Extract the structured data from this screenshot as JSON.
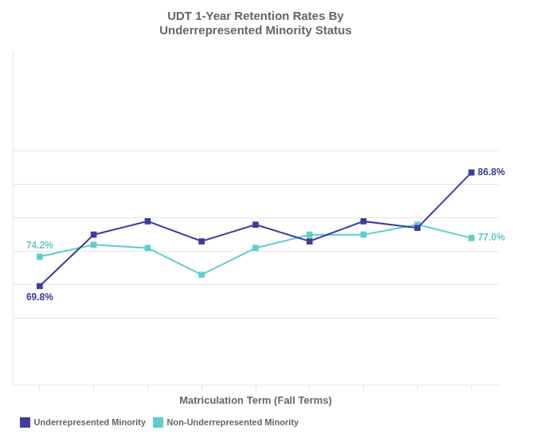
{
  "chart_data": {
    "type": "line",
    "title": [
      "UDT 1-Year Retention Rates By",
      "Underrepresented Minority Status"
    ],
    "x_label": "Matriculation Term (Fall Terms)",
    "x": [
      1,
      2,
      3,
      4,
      5,
      6,
      7,
      8,
      9
    ],
    "series": [
      {
        "name": "Underrepresented Minority",
        "color": "#3d3d9e",
        "values": [
          69.8,
          77.5,
          79.5,
          76.5,
          79.0,
          76.5,
          79.5,
          78.5,
          86.8
        ]
      },
      {
        "name": "Non-Underrepresented Minority",
        "color": "#5ecec8",
        "values": [
          74.2,
          76.0,
          75.5,
          71.5,
          75.5,
          77.5,
          77.5,
          79.0,
          77.0
        ]
      }
    ],
    "xlim": [
      0.5,
      9.5
    ],
    "xticks": [
      1,
      2,
      3,
      4,
      5,
      6,
      7,
      8,
      9
    ],
    "ylim": [
      55,
      105
    ],
    "yticks": [
      65,
      70,
      75,
      80,
      85,
      90
    ],
    "grid": true,
    "tick_labels": false,
    "legend": "lower left",
    "marker": "square",
    "annotations": [
      {
        "text": "69.8%",
        "x": 1,
        "y": 69.8,
        "color": "#3d3d9e"
      },
      {
        "text": "86.8%",
        "x": 9,
        "y": 86.8,
        "color": "#3d3d9e"
      },
      {
        "text": "74.2%",
        "x": 1,
        "y": 74.2,
        "color": "#5ecec8"
      },
      {
        "text": "77.0%",
        "x": 9,
        "y": 77.0,
        "color": "#5ecec8"
      }
    ]
  }
}
